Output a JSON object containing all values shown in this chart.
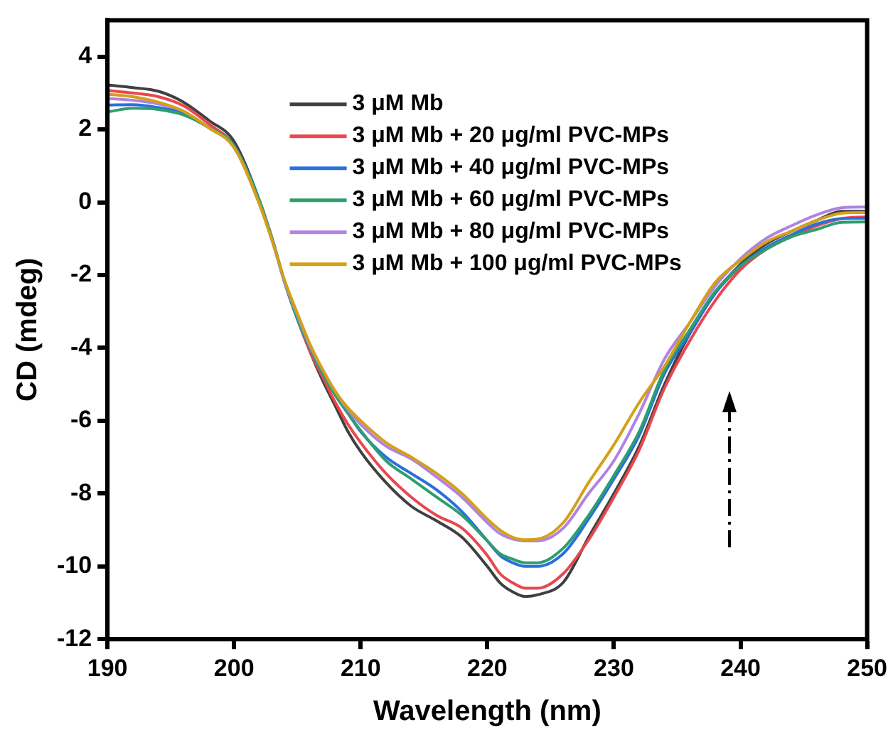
{
  "chart_data": {
    "type": "line",
    "xlabel": "Wavelength (nm)",
    "ylabel": "CD (mdeg)",
    "x": [
      190,
      192,
      194,
      196,
      198,
      200,
      202,
      203,
      204,
      205,
      206,
      207,
      208,
      209,
      210,
      212,
      214,
      216,
      218,
      220,
      221,
      222,
      223,
      224,
      226,
      228,
      230,
      232,
      234,
      236,
      238,
      240,
      242,
      244,
      246,
      248,
      250
    ],
    "xlim": [
      190,
      250
    ],
    "xticks": [
      190,
      200,
      210,
      220,
      230,
      240,
      250
    ],
    "ylim": [
      -12,
      5
    ],
    "yticks": [
      -12,
      -10,
      -8,
      -6,
      -4,
      -2,
      0,
      2,
      4
    ],
    "grid": false,
    "legend": "top right",
    "marker": "none",
    "line_style": "solid",
    "series": [
      {
        "name": "3 μM Mb",
        "color": "#404040",
        "values": [
          3.22,
          3.15,
          3.05,
          2.75,
          2.25,
          1.67,
          0.05,
          -1.0,
          -2.2,
          -3.2,
          -4.1,
          -4.9,
          -5.6,
          -6.3,
          -6.85,
          -7.7,
          -8.35,
          -8.75,
          -9.2,
          -10.0,
          -10.45,
          -10.7,
          -10.83,
          -10.78,
          -10.44,
          -9.2,
          -8.0,
          -6.7,
          -5.0,
          -3.6,
          -2.5,
          -1.7,
          -1.15,
          -0.8,
          -0.5,
          -0.25,
          -0.25
        ]
      },
      {
        "name": "3 μM Mb + 20 μg/ml PVC-MPs",
        "color": "#e8474f",
        "values": [
          3.07,
          3.0,
          2.9,
          2.65,
          2.15,
          1.55,
          0.0,
          -1.0,
          -2.2,
          -3.2,
          -4.1,
          -4.8,
          -5.5,
          -6.1,
          -6.6,
          -7.45,
          -8.1,
          -8.6,
          -8.95,
          -9.7,
          -10.2,
          -10.45,
          -10.6,
          -10.6,
          -10.2,
          -9.27,
          -8.1,
          -6.8,
          -5.1,
          -3.8,
          -2.7,
          -1.85,
          -1.3,
          -0.95,
          -0.65,
          -0.45,
          -0.4
        ]
      },
      {
        "name": "3 μM Mb + 40 μg/ml PVC-MPs",
        "color": "#2a6fdb",
        "values": [
          2.67,
          2.68,
          2.6,
          2.45,
          2.05,
          1.55,
          0.0,
          -1.0,
          -2.2,
          -3.2,
          -4.0,
          -4.7,
          -5.3,
          -5.8,
          -6.3,
          -7.0,
          -7.45,
          -7.9,
          -8.5,
          -9.3,
          -9.7,
          -9.9,
          -10.0,
          -10.0,
          -9.65,
          -8.7,
          -7.6,
          -6.4,
          -4.7,
          -3.6,
          -2.5,
          -1.75,
          -1.25,
          -0.9,
          -0.6,
          -0.45,
          -0.44
        ]
      },
      {
        "name": "3 μM Mb + 60 μg/ml PVC-MPs",
        "color": "#2e9e6e",
        "values": [
          2.48,
          2.58,
          2.55,
          2.4,
          2.05,
          1.55,
          0.05,
          -1.0,
          -2.2,
          -3.2,
          -4.0,
          -4.7,
          -5.3,
          -5.8,
          -6.27,
          -7.1,
          -7.6,
          -8.1,
          -8.6,
          -9.3,
          -9.65,
          -9.8,
          -9.9,
          -9.9,
          -9.5,
          -8.6,
          -7.5,
          -6.3,
          -4.6,
          -3.5,
          -2.45,
          -1.75,
          -1.3,
          -0.95,
          -0.75,
          -0.55,
          -0.54
        ]
      },
      {
        "name": "3 μM Mb + 80 μg/ml PVC-MPs",
        "color": "#b083e0",
        "values": [
          2.85,
          2.8,
          2.7,
          2.5,
          2.05,
          1.5,
          -0.05,
          -1.05,
          -2.2,
          -3.1,
          -3.95,
          -4.6,
          -5.2,
          -5.7,
          -6.1,
          -6.7,
          -7.05,
          -7.55,
          -8.1,
          -8.8,
          -9.1,
          -9.25,
          -9.3,
          -9.3,
          -8.95,
          -8.0,
          -7.1,
          -5.8,
          -4.3,
          -3.3,
          -2.3,
          -1.55,
          -1.0,
          -0.65,
          -0.35,
          -0.15,
          -0.13
        ]
      },
      {
        "name": "3 μM Mb + 100 μg/ml PVC-MPs",
        "color": "#d4a017",
        "values": [
          2.97,
          2.9,
          2.75,
          2.5,
          2.05,
          1.5,
          -0.05,
          -1.05,
          -2.15,
          -3.05,
          -3.9,
          -4.6,
          -5.2,
          -5.65,
          -6.0,
          -6.6,
          -7.0,
          -7.45,
          -8.0,
          -8.7,
          -9.0,
          -9.2,
          -9.27,
          -9.25,
          -8.8,
          -7.7,
          -6.66,
          -5.5,
          -4.5,
          -3.3,
          -2.2,
          -1.6,
          -1.1,
          -0.8,
          -0.5,
          -0.3,
          -0.28
        ]
      }
    ]
  }
}
